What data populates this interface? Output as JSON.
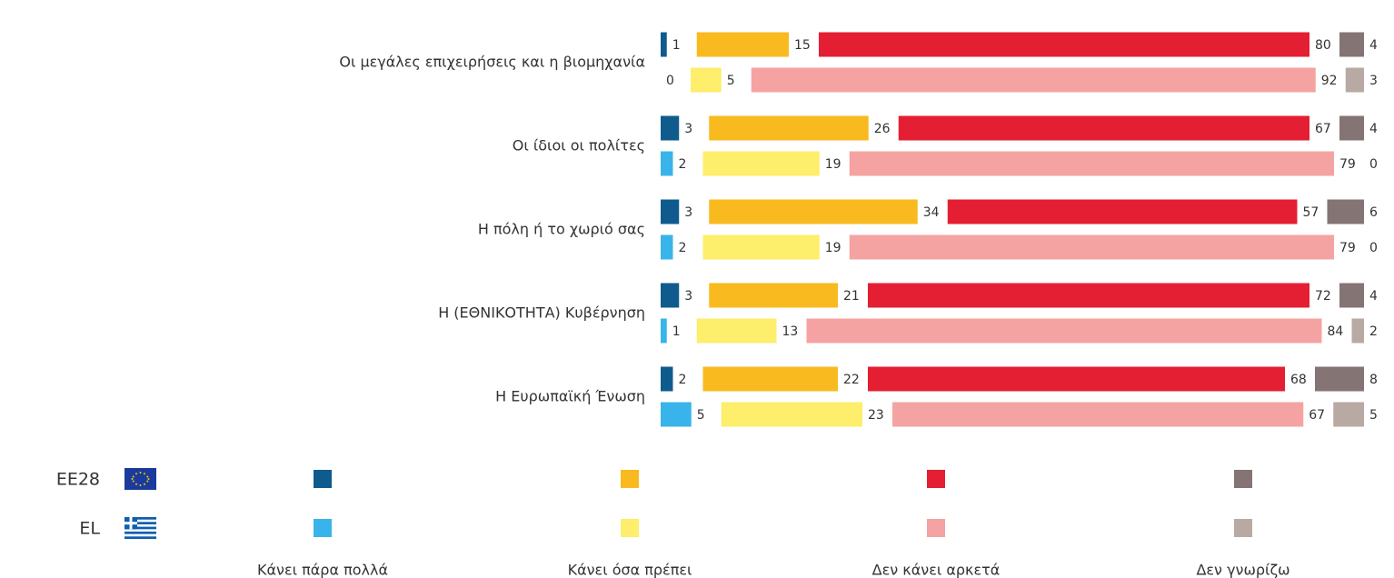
{
  "chart_data": {
    "type": "bar",
    "categories": [
      "Οι μεγάλες επιχειρήσεις και η βιομηχανία",
      "Οι ίδιοι οι πολίτες",
      "Η πόλη ή το χωριό σας",
      "Η (ΕΘΝΙΚΟΤΗΤΑ) Κυβέρνηση",
      "Η Ευρωπαϊκή Ένωση"
    ],
    "responses": [
      "Κάνει πάρα πολλά",
      "Κάνει όσα πρέπει",
      "Δεν κάνει αρκετά",
      "Δεν γνωρίζω"
    ],
    "groups": [
      {
        "name": "EE28",
        "colors": [
          "#0f5b8e",
          "#f8ba1f",
          "#e41f33",
          "#857474"
        ],
        "values": [
          [
            1,
            15,
            80,
            4
          ],
          [
            3,
            26,
            67,
            4
          ],
          [
            3,
            34,
            57,
            6
          ],
          [
            3,
            21,
            72,
            4
          ],
          [
            2,
            22,
            68,
            8
          ]
        ]
      },
      {
        "name": "EL",
        "colors": [
          "#39b4ea",
          "#fdee6c",
          "#f4a3a2",
          "#b8aaa3"
        ],
        "values": [
          [
            0,
            5,
            92,
            3
          ],
          [
            2,
            19,
            79,
            0
          ],
          [
            2,
            19,
            79,
            0
          ],
          [
            1,
            13,
            84,
            2
          ],
          [
            5,
            23,
            67,
            5
          ]
        ]
      }
    ]
  }
}
